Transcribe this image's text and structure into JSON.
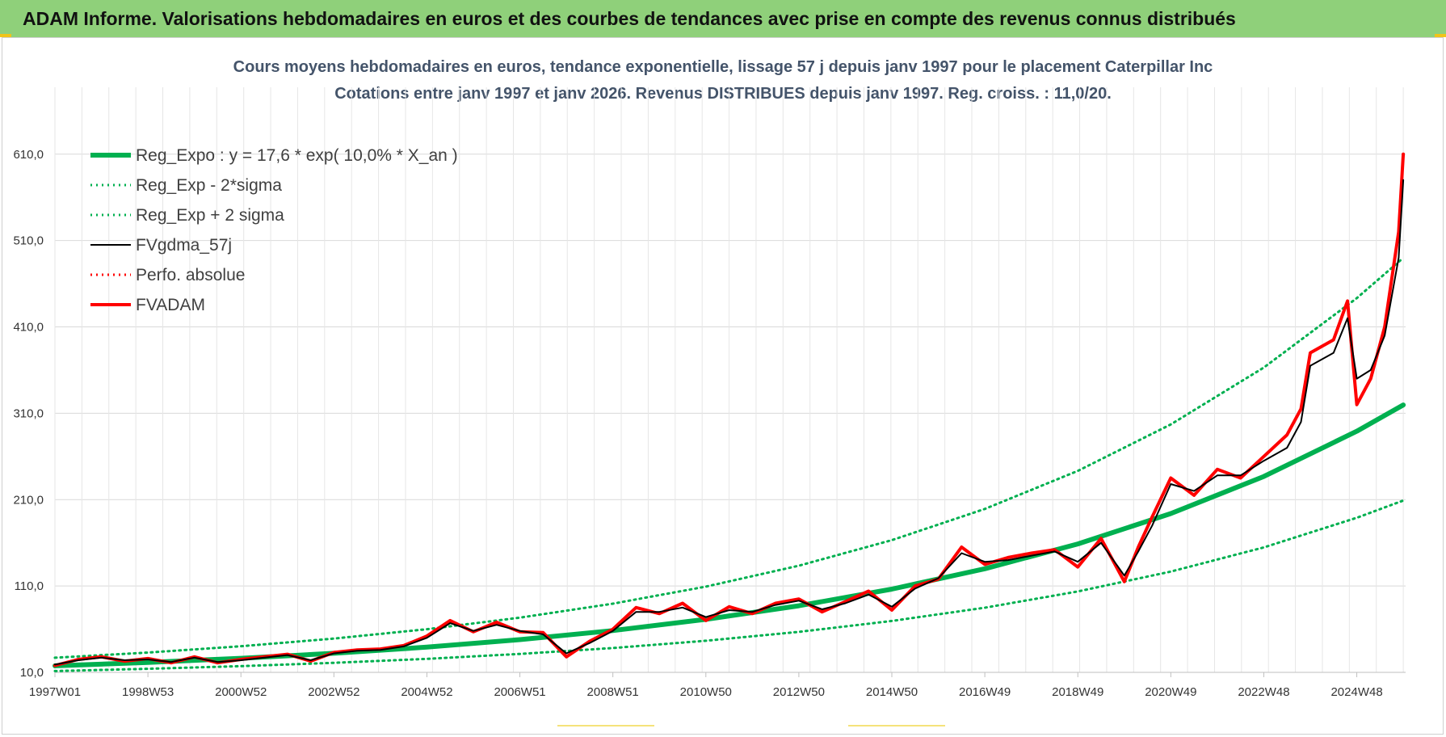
{
  "banner": {
    "title": "ADAM Informe. Valorisations hebdomadaires en euros et des courbes de tendances avec prise en compte des revenus connus distribués"
  },
  "chart_data": {
    "type": "line",
    "title": "Cours moyens hebdomadaires en euros, tendance exponentielle, lissage 57 j depuis janv 1997  pour le placement Caterpillar Inc",
    "subtitle": "Cotations entre janv 1997 et janv 2026. Revenus DISTRIBUES depuis janv 1997. Reg. croiss. : 11,0/20.",
    "xlabel": "",
    "ylabel": "",
    "xlim": [
      1997.0,
      2026.05
    ],
    "ylim": [
      10,
      650
    ],
    "yticks": [
      10,
      110,
      210,
      310,
      410,
      510,
      610
    ],
    "ytick_labels": [
      "10,0",
      "110,0",
      "210,0",
      "310,0",
      "410,0",
      "510,0",
      "610,0"
    ],
    "xticks": [
      1997.0,
      1999.0,
      2001.0,
      2003.0,
      2005.0,
      2007.0,
      2009.0,
      2011.0,
      2013.0,
      2015.0,
      2017.0,
      2019.0,
      2021.0,
      2023.0,
      2025.0
    ],
    "xtick_labels": [
      "1997W01",
      "1998W53",
      "2000W52",
      "2002W52",
      "2004W52",
      "2006W51",
      "2008W51",
      "2010W50",
      "2012W50",
      "2014W50",
      "2016W49",
      "2018W49",
      "2020W49",
      "2022W48",
      "2024W48"
    ],
    "grid": true,
    "legend_position": "top-left",
    "series": [
      {
        "name": "Reg_Expo : y = 17,6 * exp( 10,0% *  X_an )",
        "color": "#00b050",
        "style": "solid-thick",
        "x": [
          1997.0,
          1999.0,
          2001.0,
          2003.0,
          2005.0,
          2007.0,
          2009.0,
          2011.0,
          2013.0,
          2015.0,
          2017.0,
          2019.0,
          2021.0,
          2023.0,
          2025.0,
          2026.0
        ],
        "values": [
          17.6,
          21.5,
          26.3,
          32.1,
          39.2,
          47.9,
          58.4,
          71.4,
          87.1,
          106.4,
          130.0,
          158.7,
          193.9,
          236.8,
          289.2,
          319.6
        ]
      },
      {
        "name": "Reg_Exp - 2*sigma",
        "color": "#00b050",
        "style": "dotted",
        "x": [
          1997.0,
          1999.0,
          2001.0,
          2003.0,
          2005.0,
          2007.0,
          2009.0,
          2011.0,
          2013.0,
          2015.0,
          2017.0,
          2019.0,
          2021.0,
          2023.0,
          2025.0,
          2026.0
        ],
        "values": [
          11.5,
          14.1,
          17.2,
          21.0,
          25.6,
          31.3,
          38.2,
          46.6,
          56.9,
          69.5,
          84.9,
          103.7,
          126.7,
          154.7,
          189.0,
          208.9
        ]
      },
      {
        "name": "Reg_Exp + 2 sigma",
        "color": "#00b050",
        "style": "dotted",
        "x": [
          1997.0,
          1999.0,
          2001.0,
          2003.0,
          2005.0,
          2007.0,
          2009.0,
          2011.0,
          2013.0,
          2015.0,
          2017.0,
          2019.0,
          2021.0,
          2023.0,
          2025.0,
          2026.0
        ],
        "values": [
          26.9,
          32.9,
          40.2,
          49.1,
          60.0,
          73.3,
          89.5,
          109.3,
          133.5,
          163.1,
          199.2,
          243.3,
          297.1,
          362.9,
          443.3,
          489.9
        ]
      },
      {
        "name": "FVgdma_57j",
        "color": "#000000",
        "style": "solid",
        "x": [
          1997.0,
          1997.5,
          1998.0,
          1998.5,
          1999.0,
          1999.5,
          2000.0,
          2000.5,
          2001.0,
          2001.5,
          2002.0,
          2002.5,
          2003.0,
          2003.5,
          2004.0,
          2004.5,
          2005.0,
          2005.5,
          2006.0,
          2006.5,
          2007.0,
          2007.5,
          2008.0,
          2008.5,
          2009.0,
          2009.5,
          2010.0,
          2010.5,
          2011.0,
          2011.5,
          2012.0,
          2012.5,
          2013.0,
          2013.5,
          2014.0,
          2014.5,
          2015.0,
          2015.5,
          2016.0,
          2016.5,
          2017.0,
          2017.5,
          2018.0,
          2018.5,
          2019.0,
          2019.5,
          2020.0,
          2020.3,
          2020.6,
          2021.0,
          2021.5,
          2022.0,
          2022.5,
          2023.0,
          2023.5,
          2023.8,
          2024.0,
          2024.5,
          2024.8,
          2025.0,
          2025.3,
          2025.6,
          2025.9,
          2026.0
        ],
        "values": [
          19,
          24,
          27,
          24,
          25,
          22,
          27,
          22,
          24,
          27,
          30,
          24,
          32,
          35,
          36,
          40,
          50,
          67,
          58,
          65,
          58,
          54,
          32,
          44,
          58,
          80,
          80,
          85,
          74,
          82,
          80,
          88,
          93,
          83,
          90,
          100,
          86,
          107,
          119,
          148,
          138,
          140,
          145,
          150,
          138,
          160,
          122,
          150,
          180,
          228,
          220,
          238,
          238,
          255,
          270,
          300,
          365,
          380,
          420,
          350,
          360,
          400,
          490,
          580
        ]
      },
      {
        "name": "Perfo. absolue",
        "color": "#ff0000",
        "style": "dotted",
        "x": [
          1997.0,
          1997.5,
          1998.0,
          1998.5,
          1999.0,
          1999.5,
          2000.0,
          2000.5,
          2001.0,
          2001.5,
          2002.0,
          2002.5,
          2003.0,
          2003.5,
          2004.0,
          2004.5,
          2005.0,
          2005.5,
          2006.0,
          2006.5,
          2007.0,
          2007.5,
          2008.0,
          2008.5,
          2009.0,
          2009.5,
          2010.0,
          2010.5,
          2011.0,
          2011.5,
          2012.0,
          2012.5,
          2013.0,
          2013.5,
          2014.0,
          2014.5,
          2015.0,
          2015.5,
          2016.0,
          2016.5,
          2017.0,
          2017.5,
          2018.0,
          2018.5,
          2019.0,
          2019.5,
          2020.0,
          2020.3,
          2020.6,
          2021.0,
          2021.5,
          2022.0,
          2022.5,
          2023.0,
          2023.5,
          2023.8,
          2024.0,
          2024.5,
          2024.8,
          2025.0,
          2025.3,
          2025.6,
          2025.9,
          2026.0
        ],
        "values": [
          18,
          25,
          28,
          23,
          26,
          21,
          28,
          21,
          25,
          28,
          31,
          23,
          33,
          36,
          37,
          41,
          52,
          70,
          57,
          68,
          57,
          56,
          28,
          46,
          60,
          85,
          78,
          90,
          70,
          86,
          78,
          90,
          95,
          80,
          92,
          104,
          82,
          110,
          118,
          155,
          135,
          143,
          148,
          152,
          132,
          165,
          115,
          155,
          190,
          235,
          215,
          245,
          235,
          260,
          285,
          315,
          380,
          395,
          440,
          320,
          350,
          410,
          520,
          610
        ]
      },
      {
        "name": "FVADAM",
        "color": "#ff0000",
        "style": "solid-thick",
        "x": [
          1997.0,
          1997.5,
          1998.0,
          1998.5,
          1999.0,
          1999.5,
          2000.0,
          2000.5,
          2001.0,
          2001.5,
          2002.0,
          2002.5,
          2003.0,
          2003.5,
          2004.0,
          2004.5,
          2005.0,
          2005.5,
          2006.0,
          2006.5,
          2007.0,
          2007.5,
          2008.0,
          2008.5,
          2009.0,
          2009.5,
          2010.0,
          2010.5,
          2011.0,
          2011.5,
          2012.0,
          2012.5,
          2013.0,
          2013.5,
          2014.0,
          2014.5,
          2015.0,
          2015.5,
          2016.0,
          2016.5,
          2017.0,
          2017.5,
          2018.0,
          2018.5,
          2019.0,
          2019.5,
          2020.0,
          2020.3,
          2020.6,
          2021.0,
          2021.5,
          2022.0,
          2022.5,
          2023.0,
          2023.5,
          2023.8,
          2024.0,
          2024.5,
          2024.8,
          2025.0,
          2025.3,
          2025.6,
          2025.9,
          2026.0
        ],
        "values": [
          18,
          25,
          28,
          23,
          26,
          21,
          28,
          21,
          25,
          28,
          31,
          23,
          33,
          36,
          37,
          41,
          52,
          70,
          57,
          68,
          57,
          56,
          28,
          46,
          60,
          85,
          78,
          90,
          70,
          86,
          78,
          90,
          95,
          80,
          92,
          104,
          82,
          110,
          118,
          155,
          135,
          143,
          148,
          152,
          132,
          165,
          115,
          155,
          190,
          235,
          215,
          245,
          235,
          260,
          285,
          315,
          380,
          395,
          440,
          320,
          350,
          410,
          520,
          610
        ]
      }
    ]
  }
}
